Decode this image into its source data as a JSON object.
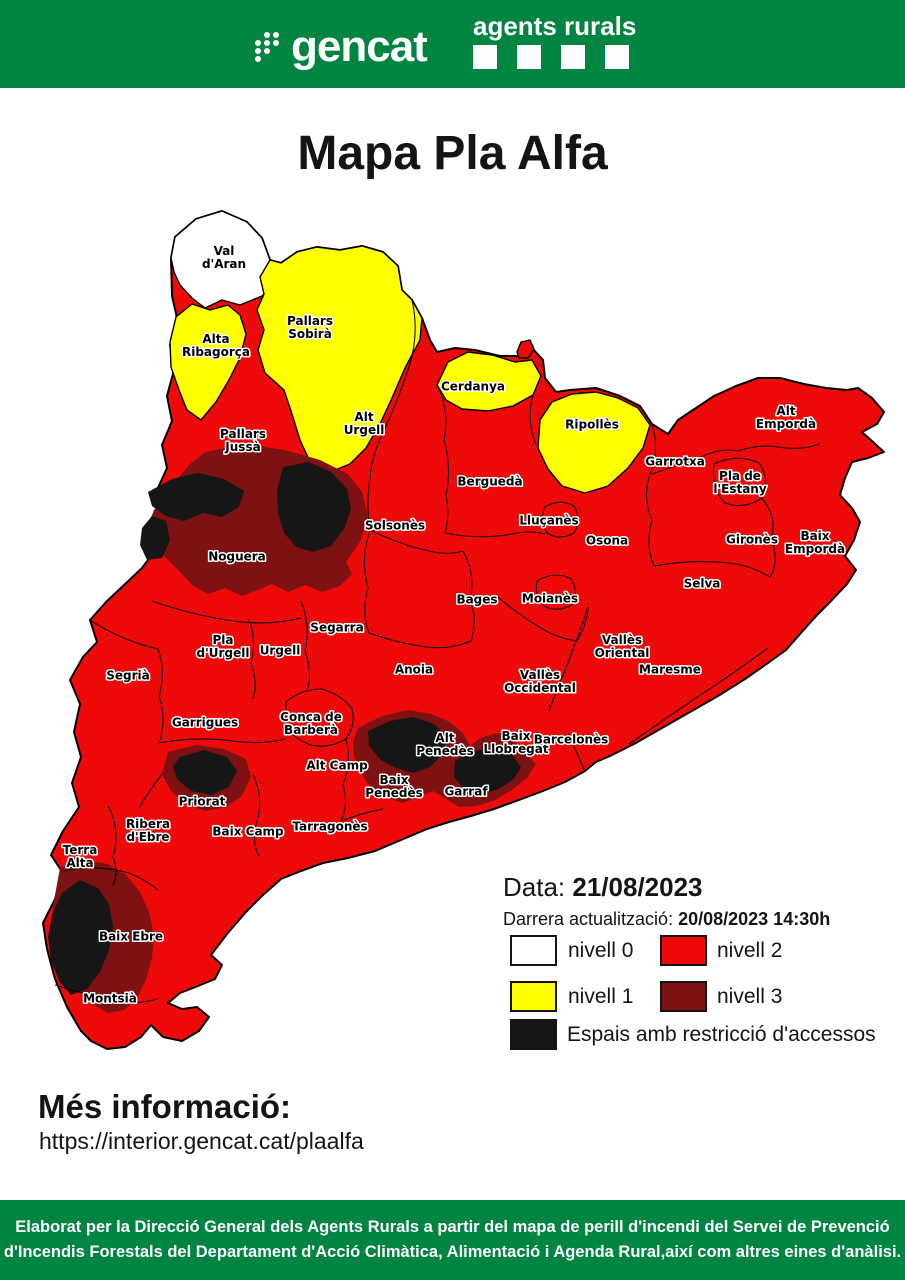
{
  "header": {
    "gencat_logo_text": "gencat",
    "agents_rurals_text": "agents rurals"
  },
  "title": "Mapa Pla Alfa",
  "colors": {
    "brand_green": "#008442",
    "text_black": "#141414",
    "label_halo_white": "#ffffff"
  },
  "map": {
    "regions": [
      {
        "id": "val-daran",
        "name": "Val d'Aran",
        "label": "Val\nd'Aran",
        "level": 0
      },
      {
        "id": "alta-ribagorca",
        "name": "Alta Ribagorça",
        "label": "Alta\nRibagorça",
        "level": 1
      },
      {
        "id": "pallars-sobira",
        "name": "Pallars Sobirà",
        "label": "Pallars\nSobirà",
        "level": 1
      },
      {
        "id": "cerdanya",
        "name": "Cerdanya",
        "label": "Cerdanya",
        "level": 1
      },
      {
        "id": "ripolles",
        "name": "Ripollès",
        "label": "Ripollès",
        "level": 1
      },
      {
        "id": "alt-emporda",
        "name": "Alt Empordà",
        "label": "Alt\nEmpordà",
        "level": 2
      },
      {
        "id": "pallars-jussa",
        "name": "Pallars Jussà",
        "label": "Pallars\nJussà",
        "level": 2
      },
      {
        "id": "alt-urgell",
        "name": "Alt Urgell",
        "label": "Alt\nUrgell",
        "level": 2
      },
      {
        "id": "garrotxa",
        "name": "Garrotxa",
        "label": "Garrotxa",
        "level": 2
      },
      {
        "id": "pla-de-lestany",
        "name": "Pla de l'Estany",
        "label": "Pla de\nl'Estany",
        "level": 2
      },
      {
        "id": "bergueda",
        "name": "Berguedà",
        "label": "Berguedà",
        "level": 2
      },
      {
        "id": "solsones",
        "name": "Solsonès",
        "label": "Solsonès",
        "level": 2
      },
      {
        "id": "llucanes",
        "name": "Lluçanès",
        "label": "Lluçanès",
        "level": 2
      },
      {
        "id": "osona",
        "name": "Osona",
        "label": "Osona",
        "level": 2
      },
      {
        "id": "girones",
        "name": "Gironès",
        "label": "Gironès",
        "level": 2
      },
      {
        "id": "baix-emporda",
        "name": "Baix Empordà",
        "label": "Baix\nEmpordà",
        "level": 2
      },
      {
        "id": "noguera",
        "name": "Noguera",
        "label": "Noguera",
        "level": 2
      },
      {
        "id": "selva",
        "name": "Selva",
        "label": "Selva",
        "level": 2
      },
      {
        "id": "bages",
        "name": "Bages",
        "label": "Bages",
        "level": 2
      },
      {
        "id": "moianes",
        "name": "Moianès",
        "label": "Moianès",
        "level": 2
      },
      {
        "id": "segarra",
        "name": "Segarra",
        "label": "Segarra",
        "level": 2
      },
      {
        "id": "pla-durgell",
        "name": "Pla d'Urgell",
        "label": "Pla\nd'Urgell",
        "level": 2
      },
      {
        "id": "urgell",
        "name": "Urgell",
        "label": "Urgell",
        "level": 2
      },
      {
        "id": "valles-oriental",
        "name": "Vallès Oriental",
        "label": "Vallès\nOriental",
        "level": 2
      },
      {
        "id": "maresme",
        "name": "Maresme",
        "label": "Maresme",
        "level": 2
      },
      {
        "id": "segria",
        "name": "Segrià",
        "label": "Segrià",
        "level": 2
      },
      {
        "id": "valles-occidental",
        "name": "Vallès Occidental",
        "label": "Vallès\nOccidental",
        "level": 2
      },
      {
        "id": "anoia",
        "name": "Anoia",
        "label": "Anoia",
        "level": 2
      },
      {
        "id": "garrigues",
        "name": "Garrigues",
        "label": "Garrigues",
        "level": 2
      },
      {
        "id": "conca-de-barbera",
        "name": "Conca de Barberà",
        "label": "Conca de\nBarberà",
        "level": 2
      },
      {
        "id": "alt-penedes",
        "name": "Alt Penedès",
        "label": "Alt\nPenedès",
        "level": 2
      },
      {
        "id": "baix-llobregat",
        "name": "Baix Llobregat",
        "label": "Baix\nLlobregat",
        "level": 2
      },
      {
        "id": "barcelones",
        "name": "Barcelonès",
        "label": "Barcelonès",
        "level": 2
      },
      {
        "id": "alt-camp",
        "name": "Alt Camp",
        "label": "Alt Camp",
        "level": 2
      },
      {
        "id": "baix-penedes",
        "name": "Baix Penedès",
        "label": "Baix\nPenedès",
        "level": 2
      },
      {
        "id": "garraf",
        "name": "Garraf",
        "label": "Garraf",
        "level": 2
      },
      {
        "id": "priorat",
        "name": "Priorat",
        "label": "Priorat",
        "level": 2
      },
      {
        "id": "ribera-debre",
        "name": "Ribera d'Ebre",
        "label": "Ribera\nd'Ebre",
        "level": 2
      },
      {
        "id": "baix-camp",
        "name": "Baix Camp",
        "label": "Baix Camp",
        "level": 2
      },
      {
        "id": "tarragones",
        "name": "Tarragonès",
        "label": "Tarragonès",
        "level": 2
      },
      {
        "id": "terra-alta",
        "name": "Terra Alta",
        "label": "Terra\nAlta",
        "level": 2
      },
      {
        "id": "baix-ebre",
        "name": "Baix Ebre",
        "label": "Baix Ebre",
        "level": 2
      },
      {
        "id": "montsia",
        "name": "Montsià",
        "label": "Montsià",
        "level": 2
      }
    ]
  },
  "legend": {
    "data_label": "Data:",
    "data_value": "21/08/2023",
    "update_label": "Darrera actualització:",
    "update_value": "20/08/2023  14:30h",
    "level_colors": {
      "0": "#FFFFFF",
      "1": "#FFFF00",
      "2": "#EF0A0A",
      "3": "#7E1212",
      "restricted": "#161616"
    },
    "items": [
      {
        "label": "nivell 0",
        "color": "#FFFFFF"
      },
      {
        "label": "nivell 1",
        "color": "#FFFF00"
      },
      {
        "label": "nivell 2",
        "color": "#EF0A0A"
      },
      {
        "label": "nivell 3",
        "color": "#7E1212"
      },
      {
        "label": "Espais amb restricció d'accessos",
        "color": "#161616"
      }
    ]
  },
  "more_info": {
    "label": "Més informació:",
    "url": "https://interior.gencat.cat/plaalfa"
  },
  "footer": {
    "credit_line1": "Elaborat per la Direcció General dels Agents Rurals a partir del mapa de perill d'incendi del Servei de Prevenció",
    "credit_line2": "d'Incendis Forestals del Departament d'Acció Climàtica, Alimentació i Agenda Rural,així com altres eines d'anàlisi."
  }
}
